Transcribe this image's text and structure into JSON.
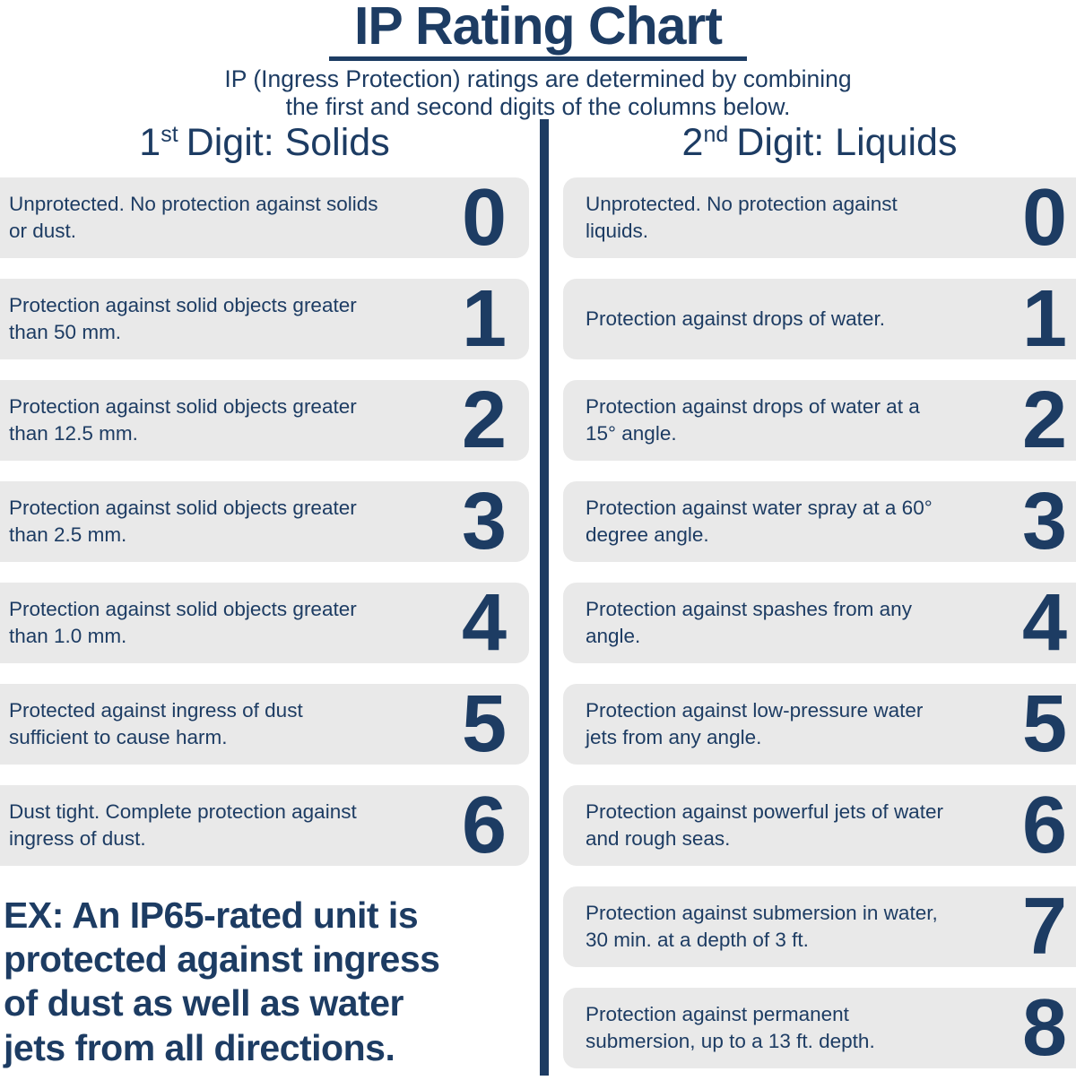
{
  "page": {
    "title": "IP Rating Chart",
    "subtitle_line1": "IP (Ingress Protection) ratings are determined by combining",
    "subtitle_line2": "the first and second digits of the columns below.",
    "colors": {
      "navy": "#1d3c63",
      "row_background": "#e9e9e9",
      "background": "#ffffff"
    }
  },
  "columns": {
    "solids": {
      "header": {
        "number": "1",
        "ordinal": "st",
        "label": "Digit: Solids"
      },
      "rows": [
        {
          "digit": "0",
          "description": "Unprotected. No protection against solids or dust."
        },
        {
          "digit": "1",
          "description": "Protection against solid objects greater than 50 mm."
        },
        {
          "digit": "2",
          "description": "Protection against solid objects greater than 12.5 mm."
        },
        {
          "digit": "3",
          "description": "Protection against solid objects greater than 2.5 mm."
        },
        {
          "digit": "4",
          "description": "Protection against solid objects greater than 1.0 mm."
        },
        {
          "digit": "5",
          "description": "Protected against ingress of dust sufficient to cause harm."
        },
        {
          "digit": "6",
          "description": "Dust tight. Complete protection against ingress of dust."
        }
      ]
    },
    "liquids": {
      "header": {
        "number": "2",
        "ordinal": "nd",
        "label": "Digit: Liquids"
      },
      "rows": [
        {
          "digit": "0",
          "description": "Unprotected. No protection against liquids."
        },
        {
          "digit": "1",
          "description": "Protection against drops of water."
        },
        {
          "digit": "2",
          "description": "Protection against drops of water at a 15° angle."
        },
        {
          "digit": "3",
          "description": "Protection against water spray at a 60° degree angle."
        },
        {
          "digit": "4",
          "description": "Protection against spashes from any angle."
        },
        {
          "digit": "5",
          "description": "Protection against low-pressure water jets from any angle."
        },
        {
          "digit": "6",
          "description": "Protection against powerful jets of water and rough seas."
        },
        {
          "digit": "7",
          "description": "Protection against submersion in water, 30 min. at a depth of 3 ft."
        },
        {
          "digit": "8",
          "description": "Protection against permanent submersion, up to a 13 ft. depth."
        }
      ]
    }
  },
  "example": {
    "lines": [
      "EX: An IP65-rated unit is",
      "protected against ingress",
      "of dust as well as water",
      "jets from all directions."
    ]
  }
}
